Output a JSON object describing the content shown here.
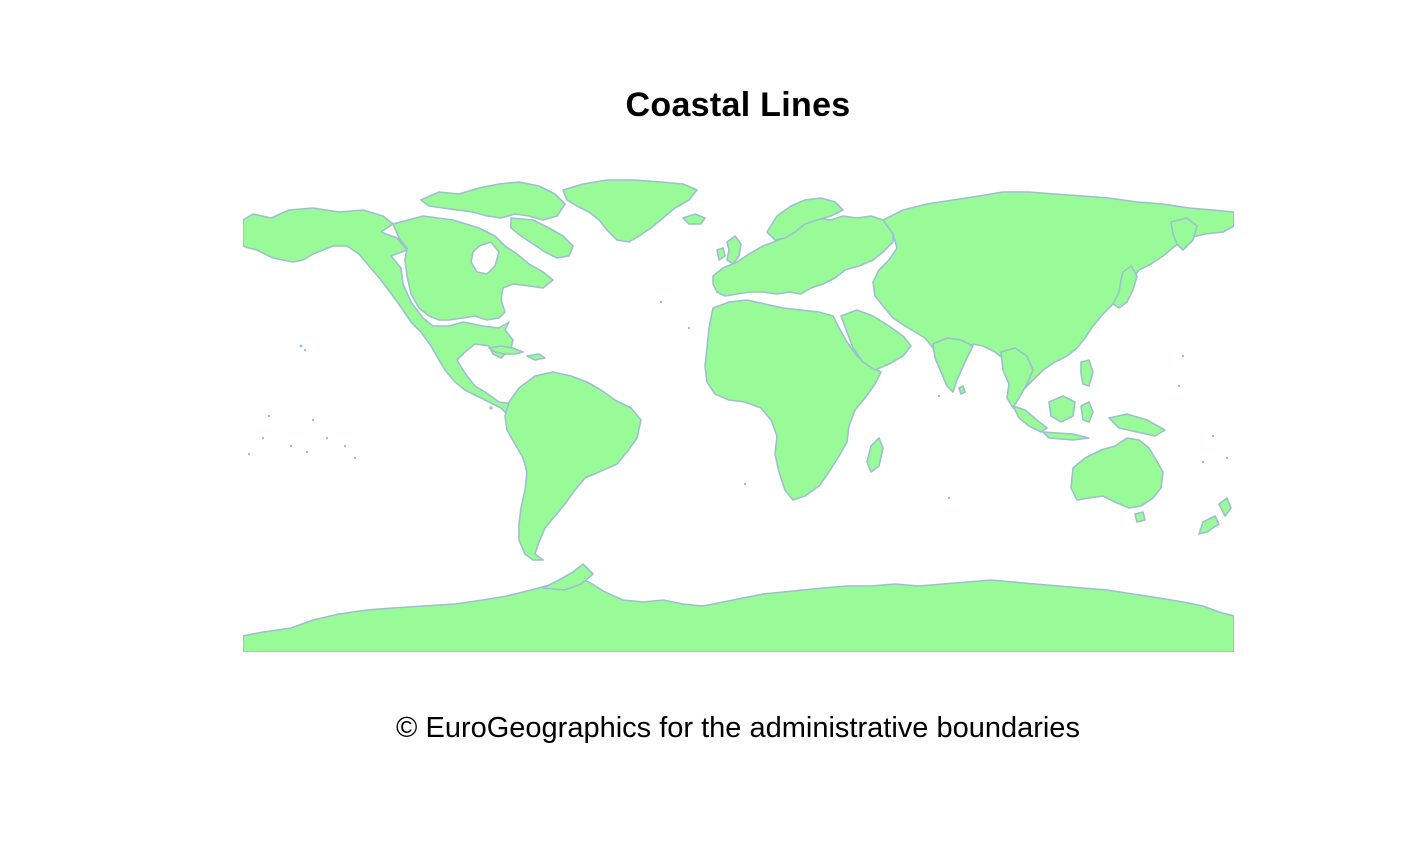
{
  "title": "Coastal Lines",
  "caption": "© EuroGeographics for the administrative boundaries",
  "colors": {
    "land_fill": "#98fb98",
    "coast_stroke": "#9ebfd1",
    "background": "#ffffff",
    "text": "#000000"
  }
}
